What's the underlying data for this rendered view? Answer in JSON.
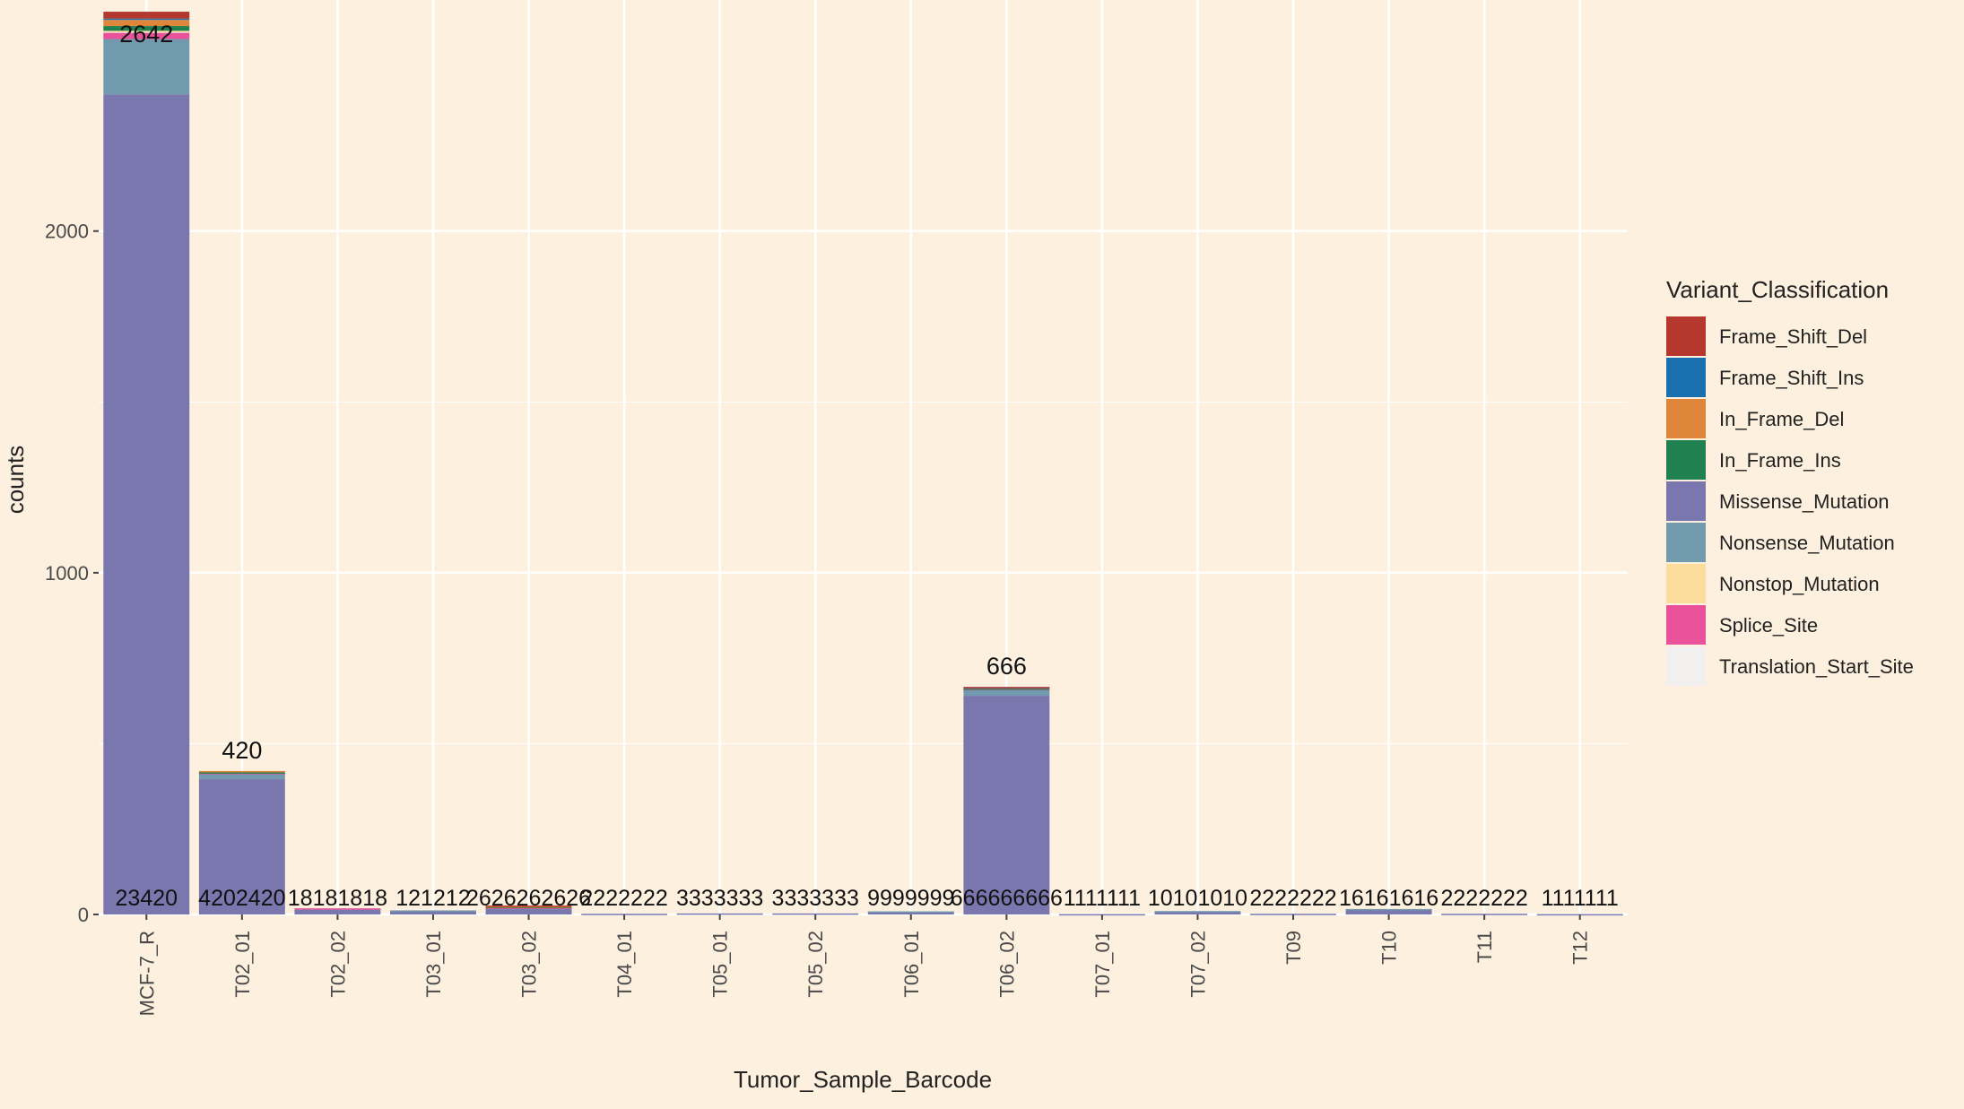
{
  "chart_data": {
    "type": "bar",
    "stacked": true,
    "xlabel": "Tumor_Sample_Barcode",
    "ylabel": "counts",
    "ylim": [
      0,
      2650
    ],
    "yticks": [
      0,
      1000,
      2000
    ],
    "grid": true,
    "legend_position": "right",
    "legend_title": "Variant_Classification",
    "categories": [
      "MCF-7_R",
      "T02_01",
      "T02_02",
      "T03_01",
      "T03_02",
      "T04_01",
      "T05_01",
      "T05_02",
      "T06_01",
      "T06_02",
      "T07_01",
      "T07_02",
      "T09",
      "T10",
      "T11",
      "T12"
    ],
    "totals": [
      2642,
      420,
      18,
      12,
      26,
      2,
      3,
      3,
      9,
      666,
      1,
      10,
      2,
      16,
      2,
      1
    ],
    "total_labels": [
      "2642",
      "420",
      "",
      "",
      "",
      "",
      "",
      "",
      "",
      "666",
      "",
      "",
      "",
      "",
      "",
      ""
    ],
    "series": [
      {
        "name": "Frame_Shift_Del",
        "color": "#B5382E",
        "values": [
          20,
          0,
          0,
          0,
          2,
          0,
          0,
          0,
          0,
          2,
          0,
          0,
          0,
          0,
          0,
          0
        ]
      },
      {
        "name": "Frame_Shift_Ins",
        "color": "#1A6FAF",
        "values": [
          4,
          0,
          0,
          0,
          0,
          0,
          0,
          0,
          0,
          1,
          0,
          0,
          0,
          0,
          0,
          0
        ]
      },
      {
        "name": "In_Frame_Del",
        "color": "#E0863A",
        "values": [
          18,
          4,
          0,
          0,
          2,
          0,
          0,
          0,
          0,
          2,
          0,
          0,
          0,
          0,
          0,
          0
        ]
      },
      {
        "name": "In_Frame_Ins",
        "color": "#21804F",
        "values": [
          14,
          2,
          0,
          0,
          2,
          0,
          0,
          0,
          0,
          1,
          0,
          0,
          0,
          0,
          0,
          0
        ]
      },
      {
        "name": "Missense_Mutation",
        "color": "#7977AE",
        "values": [
          2400,
          396,
          14,
          10,
          16,
          2,
          3,
          3,
          7,
          640,
          1,
          8,
          2,
          14,
          2,
          1
        ]
      },
      {
        "name": "Nonsense_Mutation",
        "color": "#729AAF",
        "values": [
          162,
          16,
          3,
          2,
          3,
          0,
          0,
          0,
          2,
          18,
          0,
          2,
          0,
          2,
          0,
          0
        ]
      },
      {
        "name": "Nonstop_Mutation",
        "color": "#FCDD9B",
        "values": [
          2,
          0,
          0,
          0,
          0,
          0,
          0,
          0,
          0,
          0,
          0,
          0,
          0,
          0,
          0,
          0
        ]
      },
      {
        "name": "Splice_Site",
        "color": "#E9519A",
        "values": [
          20,
          2,
          1,
          0,
          1,
          0,
          0,
          0,
          0,
          2,
          0,
          0,
          0,
          0,
          0,
          0
        ]
      },
      {
        "name": "Translation_Start_Site",
        "color": "#F2F0EE",
        "values": [
          2,
          0,
          0,
          0,
          0,
          0,
          0,
          0,
          0,
          0,
          0,
          0,
          0,
          0,
          0,
          0
        ]
      }
    ],
    "overlap_labels": [
      "23420",
      "4202420",
      "18181818",
      "121212",
      "2626262626",
      "2222222",
      "3333333",
      "3333333",
      "9999999",
      "666666666",
      "1111111",
      "10101010",
      "2222222",
      "16161616",
      "2222222",
      "1111111"
    ]
  }
}
